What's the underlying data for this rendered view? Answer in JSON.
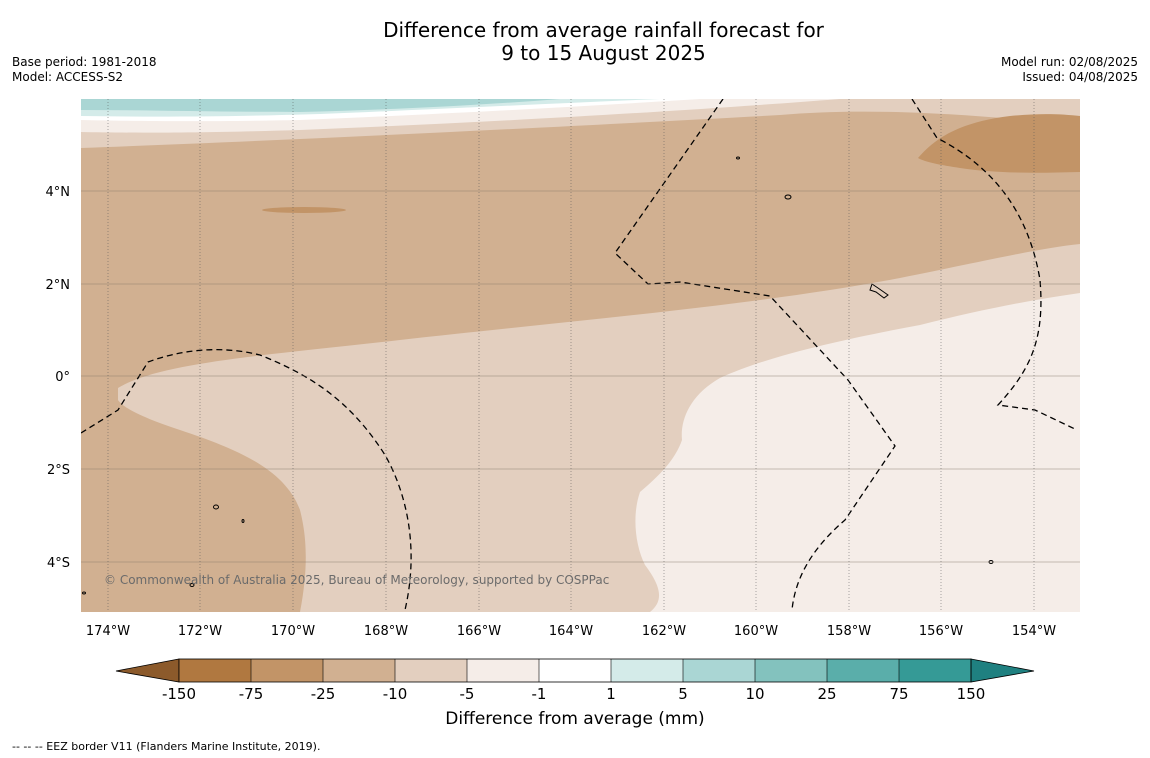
{
  "title": {
    "line1": "Difference from average rainfall forecast for",
    "line2": "9 to 15 August 2025"
  },
  "meta_left": {
    "base_period": "Base period: 1981-2018",
    "model": "Model: ACCESS-S2"
  },
  "meta_right": {
    "model_run": "Model run: 02/08/2025",
    "issued": "Issued: 04/08/2025"
  },
  "map": {
    "lat_labels": [
      "4°N",
      "2°N",
      "0°",
      "2°S",
      "4°S"
    ],
    "lon_labels": [
      "174°W",
      "172°W",
      "170°W",
      "168°W",
      "166°W",
      "164°W",
      "162°W",
      "160°W",
      "158°W",
      "156°W",
      "154°W"
    ],
    "copyright": "© Commonwealth of Australia 2025, Bureau of Meteorology, supported by COSPPac",
    "palette": {
      "dry_extreme": "#8c5a2b",
      "minus150": "#b07840",
      "minus75": "#c29467",
      "minus25": "#d1b091",
      "minus10": "#e3cfbf",
      "minus5": "#f5ede8",
      "neutral": "#ffffff",
      "plus1": "#d4ebe9",
      "plus5": "#aad6d4",
      "plus10": "#83c2be",
      "plus25": "#5aaeaa",
      "plus75": "#359a96",
      "wet_extreme": "#1f8080"
    }
  },
  "colorbar": {
    "ticks": [
      "-150",
      "-75",
      "-25",
      "-10",
      "-5",
      "-1",
      "1",
      "5",
      "10",
      "25",
      "75",
      "150"
    ],
    "label": "Difference from average (mm)"
  },
  "footer": "--  --  -- EEZ border V11 (Flanders Marine Institute, 2019)."
}
